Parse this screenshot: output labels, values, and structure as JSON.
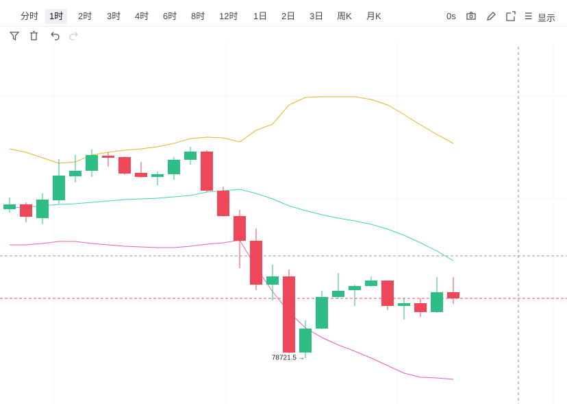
{
  "toolbar": {
    "intervals": [
      "分时",
      "1时",
      "2时",
      "3时",
      "4时",
      "6时",
      "8时",
      "12时",
      "1日",
      "2日",
      "3日",
      "周K",
      "月K"
    ],
    "active_interval": "1时",
    "countdown": "0s",
    "display_label": "显示"
  },
  "chart_data": {
    "type": "candlestick",
    "up_color": "#2ebd85",
    "down_color": "#f0465a",
    "ylim": [
      78051.5,
      83291.5
    ],
    "open": [
      80891.5,
      80961.5,
      80761.5,
      81021.5,
      81371.5,
      81451.5,
      81671.5,
      81651.5,
      81421.5,
      81361.5,
      81401.5,
      81611.5,
      81731.5,
      81161.5,
      80791.5,
      80431.5,
      79791.5,
      79911.5,
      78801.5,
      79151.5,
      79611.5,
      79711.5,
      79771.5,
      79851.5,
      79481.5,
      79521.5,
      79391.5,
      79681.5
    ],
    "high": [
      81061.5,
      80991.5,
      81121.5,
      81621.5,
      81681.5,
      81761.5,
      81721.5,
      81661.5,
      81581.5,
      81441.5,
      81651.5,
      81801.5,
      81751.5,
      81221.5,
      80881.5,
      80611.5,
      80081.5,
      80011.5,
      79271.5,
      79701.5,
      79961.5,
      79791.5,
      79911.5,
      79851.5,
      79591.5,
      79591.5,
      79901.5,
      79901.5
    ],
    "low": [
      80841.5,
      80701.5,
      80671.5,
      80971.5,
      81281.5,
      81361.5,
      81511.5,
      81391.5,
      81351.5,
      81241.5,
      81321.5,
      81541.5,
      81141.5,
      80781.5,
      80031.5,
      79711.5,
      79561.5,
      78791.5,
      78721.5,
      79141.5,
      79591.5,
      79481.5,
      79761.5,
      79421.5,
      79281.5,
      79321.5,
      79381.5,
      79511.5
    ],
    "close": [
      80961.5,
      80781.5,
      81031.5,
      81381.5,
      81451.5,
      81681.5,
      81641.5,
      81411.5,
      81361.5,
      81401.5,
      81611.5,
      81731.5,
      81161.5,
      80791.5,
      80431.5,
      79791.5,
      79911.5,
      78801.5,
      79151.5,
      79611.5,
      79701.5,
      79771.5,
      79851.5,
      79481.5,
      79521.5,
      79391.5,
      79681.5,
      79591.5
    ],
    "bands": [
      {
        "color": "#e6b422",
        "values": [
          81771.5,
          81721.5,
          81641.5,
          81561.5,
          81581.5,
          81681.5,
          81721.5,
          81751.5,
          81771.5,
          81801.5,
          81851.5,
          81921.5,
          81941.5,
          81931.5,
          81871.5,
          82041.5,
          82131.5,
          82411.5,
          82521.5,
          82531.5,
          82531.5,
          82531.5,
          82491.5,
          82411.5,
          82271.5,
          82121.5,
          81981.5,
          81851.5
        ]
      },
      {
        "color": "#3fd1bb",
        "values": [
          80911.5,
          80921.5,
          80941.5,
          80961.5,
          80971.5,
          80991.5,
          81011.5,
          81031.5,
          81041.5,
          81051.5,
          81071.5,
          81091.5,
          81141.5,
          81161.5,
          81181.5,
          81121.5,
          81041.5,
          80941.5,
          80871.5,
          80811.5,
          80761.5,
          80721.5,
          80671.5,
          80601.5,
          80511.5,
          80401.5,
          80281.5,
          80141.5
        ]
      },
      {
        "color": "#e85bb5",
        "values": [
          80371.5,
          80371.5,
          80391.5,
          80421.5,
          80421.5,
          80391.5,
          80371.5,
          80351.5,
          80341.5,
          80331.5,
          80331.5,
          80351.5,
          80381.5,
          80401.5,
          80441.5,
          80041.5,
          79691.5,
          79391.5,
          79161.5,
          79021.5,
          78911.5,
          78821.5,
          78721.5,
          78611.5,
          78501.5,
          78441.5,
          78431.5,
          78411.5
        ]
      }
    ],
    "price_lines": [
      {
        "value": 80211.5,
        "color": "#9a9a9a"
      },
      {
        "value": 79591.5,
        "color": "#e0505f"
      }
    ],
    "low_label": 78721.5
  }
}
